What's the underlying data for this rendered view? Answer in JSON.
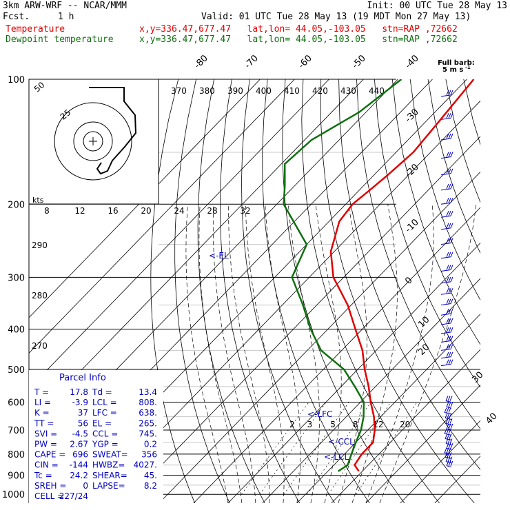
{
  "header": {
    "model": "3km ARW-WRF -- NCAR/MMM",
    "fcst_label": "Fcst.",
    "fcst_value": "1 h",
    "init": "Init: 00 UTC Tue 28 May 13",
    "valid": "Valid: 01 UTC Tue 28 May 13 (19 MDT Mon 27 May 13)",
    "temp_name": "Temperature",
    "dew_name": "Dewpoint temperature",
    "temp_info": "x,y=336.47,677.47   lat,lon= 44.05,-103.05   stn=RAP ,72662",
    "dew_info": "x,y=336.47,677.47   lat,lon= 44.05,-103.05   stn=RAP ,72662",
    "wind_legend_1": "Full barb:",
    "wind_legend_2": "5 m s",
    "wind_legend_sup": "-1",
    "hodo_units": "kts"
  },
  "colors": {
    "temperature": "#e00000",
    "dewpoint": "#107010",
    "text_blue": "#0000c0"
  },
  "chart_data": {
    "type": "line",
    "title": "",
    "ylabel": "",
    "pressure_levels": [
      100,
      200,
      300,
      400,
      500,
      600,
      700,
      800,
      900,
      1000
    ],
    "isotherm_labels": [
      -80,
      -70,
      -60,
      -50,
      -40,
      -30,
      -20,
      -10,
      0,
      10,
      20,
      30,
      40
    ],
    "theta_labels": [
      370,
      380,
      390,
      400,
      410,
      420,
      430,
      440
    ],
    "thetae_labels": [
      "290",
      "280",
      "270"
    ],
    "mixing_ratio_top": [
      8,
      12,
      16,
      20,
      24,
      28,
      32
    ],
    "mixing_ratio_bottom": [
      2,
      3,
      5,
      8,
      12,
      20
    ],
    "hodo_ring_labels": [
      "50",
      "25"
    ],
    "level_markers": [
      "<-EL",
      "<-LFC",
      "<-CCL",
      "<-LCL"
    ],
    "series": [
      {
        "name": "Temperature",
        "color": "#e00000",
        "points": [
          [
            100,
            -58
          ],
          [
            130,
            -56
          ],
          [
            150,
            -55
          ],
          [
            170,
            -56
          ],
          [
            185,
            -57
          ],
          [
            200,
            -58
          ],
          [
            220,
            -57
          ],
          [
            260,
            -51
          ],
          [
            300,
            -43
          ],
          [
            350,
            -31
          ],
          [
            400,
            -22
          ],
          [
            450,
            -14
          ],
          [
            500,
            -8
          ],
          [
            550,
            -2
          ],
          [
            600,
            3
          ],
          [
            650,
            8
          ],
          [
            700,
            12
          ],
          [
            750,
            15
          ],
          [
            800,
            15
          ],
          [
            850,
            16
          ],
          [
            880,
            19
          ]
        ]
      },
      {
        "name": "Dewpoint temperature",
        "color": "#107010",
        "points": [
          [
            100,
            -79
          ],
          [
            120,
            -82
          ],
          [
            140,
            -88
          ],
          [
            160,
            -89
          ],
          [
            180,
            -83
          ],
          [
            200,
            -78
          ],
          [
            250,
            -60
          ],
          [
            300,
            -55
          ],
          [
            350,
            -44
          ],
          [
            400,
            -35
          ],
          [
            450,
            -26
          ],
          [
            500,
            -14
          ],
          [
            550,
            -6
          ],
          [
            600,
            1
          ],
          [
            650,
            5
          ],
          [
            700,
            8
          ],
          [
            750,
            10
          ],
          [
            800,
            12
          ],
          [
            850,
            14
          ],
          [
            880,
            13
          ]
        ]
      }
    ]
  },
  "parcel": {
    "title": "Parcel Info",
    "rows": [
      {
        "l1": "T  =",
        "v1": "17.8",
        "l2": "Td =",
        "v2": "13.4"
      },
      {
        "l1": "LI =",
        "v1": "-3.9",
        "l2": "LCL =",
        "v2": "808."
      },
      {
        "l1": "K  =",
        "v1": "37",
        "l2": "LFC =",
        "v2": "638."
      },
      {
        "l1": "TT =",
        "v1": "56",
        "l2": "EL =",
        "v2": "265."
      },
      {
        "l1": "SVI =",
        "v1": "-4.5",
        "l2": "CCL =",
        "v2": "745."
      },
      {
        "l1": "PW =",
        "v1": "2.67",
        "l2": "YGP =",
        "v2": "0.2"
      },
      {
        "l1": "CAPE =",
        "v1": "696",
        "l2": "SWEAT=",
        "v2": "356"
      },
      {
        "l1": "CIN =",
        "v1": "-144",
        "l2": "HWBZ=",
        "v2": "4027."
      },
      {
        "l1": "Tc =",
        "v1": "24.2",
        "l2": "SHEAR=",
        "v2": "45."
      },
      {
        "l1": "SREH =",
        "v1": "0",
        "l2": "LAPSE=",
        "v2": "8.2"
      },
      {
        "l1": "CELL =",
        "v1": "227/24",
        "l2": "",
        "v2": ""
      }
    ]
  }
}
